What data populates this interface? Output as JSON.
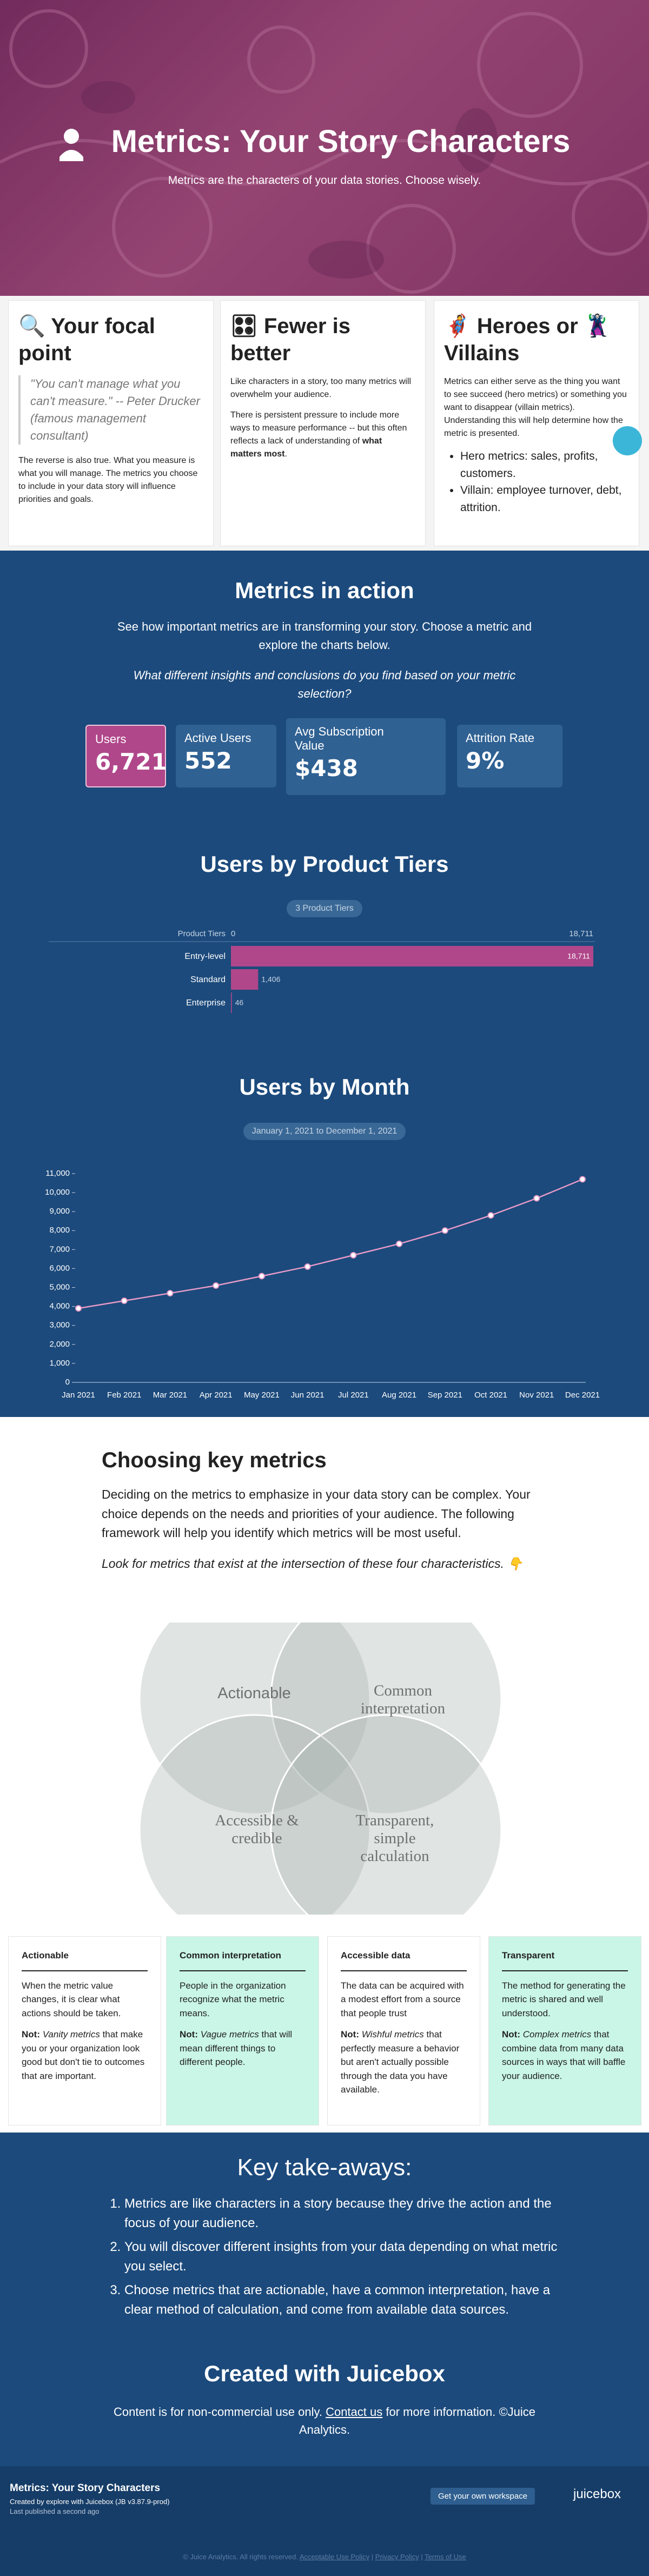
{
  "hero": {
    "title": "Metrics: Your Story Characters",
    "subtitle": "Metrics are the characters of your data stories. Choose wisely."
  },
  "intro_cards": [
    {
      "title": "🔍 Your focal point",
      "quote": "\"You can't manage what you can't measure.\" -- Peter Drucker (famous management consultant)",
      "text": "The reverse is also true. What you measure is what you will manage. The metrics you choose to include in your data story will influence priorities and goals."
    },
    {
      "title": "🎛 Fewer is better",
      "text": "Like characters in a story, too many metrics will overwhelm your audience.",
      "text2": [
        "There is persistent pressure to include more ways to measure performance -- but this often reflects a lack of understanding of ",
        "what matters most",
        "."
      ]
    },
    {
      "title": "🦸 Heroes or 🦹 Villains",
      "text": "Metrics can either serve as the thing you want to see succeed (hero metrics) or something you want to disappear (villain metrics). Understanding this will help determine how the metric is presented.",
      "bullets": [
        "Hero metrics: sales, profits, customers.",
        "Villain: employee turnover, debt, attrition."
      ]
    }
  ],
  "metrics_in_action": {
    "title": "Metrics in action",
    "text": "See how important metrics are in transforming your story. Choose a metric and explore the charts below.",
    "question": "What different insights and conclusions do you find based on your metric selection?",
    "kpis": [
      {
        "label": "Users",
        "value": "6,721"
      },
      {
        "label": "Active Users",
        "value": "552"
      },
      {
        "label": "Avg Subscription Value",
        "value": "$438"
      },
      {
        "label": "Attrition Rate",
        "value": "9%"
      }
    ]
  },
  "chart_data": [
    {
      "type": "bar",
      "orientation": "horizontal",
      "title": "Users by Product Tiers",
      "filter_label": "3 Product Tiers",
      "axis_label": "Product Tiers",
      "categories": [
        "Entry-level",
        "Standard",
        "Enterprise"
      ],
      "values": [
        18711,
        1406,
        46
      ],
      "value_labels": [
        "18,711",
        "1,406",
        "46"
      ],
      "xlim": [
        0,
        18711
      ],
      "xticks": [
        0,
        {
          "value": 18711,
          "label": "18,711"
        }
      ],
      "color": "#b0478a"
    },
    {
      "type": "line",
      "title": "Users by Month",
      "filter_label": "January 1, 2021 to December 1, 2021",
      "x": [
        "Jan 2021",
        "Feb 2021",
        "Mar 2021",
        "Apr 2021",
        "May 2021",
        "Jun 2021",
        "Jul 2021",
        "Aug 2021",
        "Sep 2021",
        "Oct 2021",
        "Nov 2021",
        "Dec 2021"
      ],
      "values": [
        3900,
        4300,
        4700,
        5100,
        5600,
        6100,
        6700,
        7300,
        8000,
        8800,
        9700,
        10700
      ],
      "ylim": [
        0,
        11000
      ],
      "yticks": [
        0,
        {
          "value": 1000,
          "label": "1,000"
        },
        {
          "value": 2000,
          "label": "2,000"
        },
        {
          "value": 3000,
          "label": "3,000"
        },
        {
          "value": 4000,
          "label": "4,000"
        },
        {
          "value": 5000,
          "label": "5,000"
        },
        {
          "value": 6000,
          "label": "6,000"
        },
        {
          "value": 7000,
          "label": "7,000"
        },
        {
          "value": 8000,
          "label": "8,000"
        },
        {
          "value": 9000,
          "label": "9,000"
        },
        {
          "value": 10000,
          "label": "10,000"
        },
        {
          "value": 11000,
          "label": "11,000"
        }
      ],
      "color": "#e79ac7"
    }
  ],
  "choosing": {
    "title": "Choosing key metrics",
    "text": "Deciding on the metrics to emphasize in your data story can be complex. Your choice depends on the needs and priorities of your audience. The following framework will help you identify which metrics will be most useful.",
    "hint": "Look for metrics that exist at the intersection of these four characteristics. 👇",
    "venn": [
      "Actionable",
      "Common interpretation",
      "Accessible & credible",
      "Transparent, simple calculation"
    ],
    "not_label": "Not:",
    "cards": [
      {
        "title": "Actionable",
        "text": "When the metric value changes, it is clear what actions should be taken.",
        "not_term": "Vanity metrics",
        "not_text": " that make you or your organization look good but don't tie to outcomes that are important."
      },
      {
        "title": "Common interpretation",
        "text": "People in the organization recognize what the metric means.",
        "not_term": "Vague metrics",
        "not_text": " that will mean different things to different people."
      },
      {
        "title": "Accessible data",
        "text": "The data can be acquired with a modest effort from a source that people trust",
        "not_term": "Wishful metrics",
        "not_text": " that perfectly measure a behavior but aren't actually possible through the data you have available."
      },
      {
        "title": "Transparent",
        "text": "The method for generating the metric is shared and well understood.",
        "not_term": "Complex metrics",
        "not_text": " that combine data from many data sources in ways that will baffle your audience."
      }
    ]
  },
  "takeaways": {
    "title": "Key take-aways:",
    "items": [
      "Metrics are like characters in a story because they drive the action and the focus of your audience.",
      "You will discover different insights from your data depending on what metric you select.",
      "Choose metrics that are actionable, have a common interpretation, have a clear method of calculation, and come from available data sources."
    ]
  },
  "created": {
    "title": "Created with Juicebox",
    "text": [
      "Content is for non-commercial use only. ",
      "Contact us",
      " for more information. ©Juice Analytics."
    ]
  },
  "footer": {
    "title": "Metrics: Your Story Characters",
    "created_by": "Created by explore with Juicebox (JB v3.87.9-prod)",
    "published": "Last published a second ago",
    "button": "Get your own workspace",
    "logo": "juicebox",
    "copyright": "© Juice Analytics. All rights reserved.",
    "links": [
      "Acceptable Use Policy",
      "Privacy Policy",
      "Terms of Use"
    ],
    "separator": "|"
  }
}
